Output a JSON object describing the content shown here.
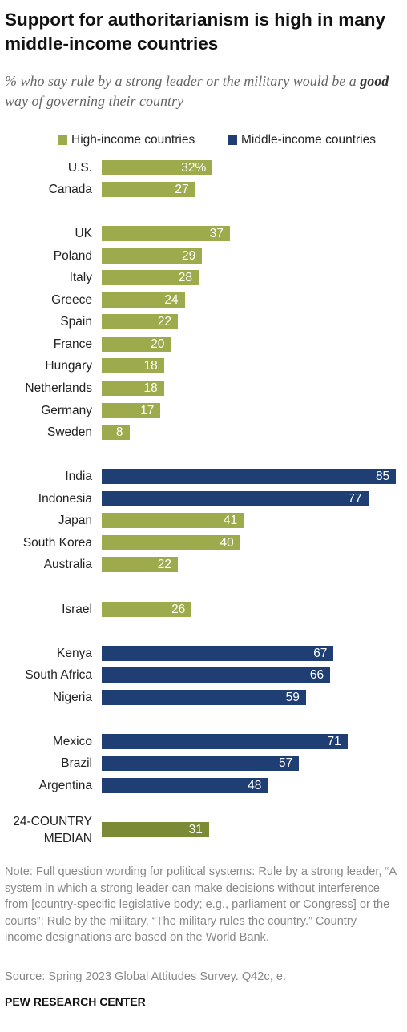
{
  "chart_data": {
    "type": "bar",
    "orientation": "horizontal",
    "title": "Support for authoritarianism is high in many middle-income countries",
    "subtitle": [
      "% who say rule by a strong leader or the military would be a ",
      "good",
      " way of governing their country"
    ],
    "legend": [
      {
        "name": "High-income countries",
        "color": "#9dab4c"
      },
      {
        "name": "Middle-income countries",
        "color": "#1f3e74"
      }
    ],
    "categories": [
      "U.S.",
      "Canada",
      "UK",
      "Poland",
      "Italy",
      "Greece",
      "Spain",
      "France",
      "Hungary",
      "Netherlands",
      "Germany",
      "Sweden",
      "India",
      "Indonesia",
      "Japan",
      "South Korea",
      "Australia",
      "Israel",
      "Kenya",
      "South Africa",
      "Nigeria",
      "Mexico",
      "Brazil",
      "Argentina",
      "24-COUNTRY MEDIAN"
    ],
    "values": [
      32,
      27,
      37,
      29,
      28,
      24,
      22,
      20,
      18,
      18,
      17,
      8,
      85,
      77,
      41,
      40,
      22,
      26,
      67,
      66,
      59,
      71,
      57,
      48,
      31
    ],
    "value_labels": [
      "32%",
      "27",
      "37",
      "29",
      "28",
      "24",
      "22",
      "20",
      "18",
      "18",
      "17",
      "8",
      "85",
      "77",
      "41",
      "40",
      "22",
      "26",
      "67",
      "66",
      "59",
      "71",
      "57",
      "48",
      "31"
    ],
    "colors": [
      "#9dab4c",
      "#9dab4c",
      "#9dab4c",
      "#9dab4c",
      "#9dab4c",
      "#9dab4c",
      "#9dab4c",
      "#9dab4c",
      "#9dab4c",
      "#9dab4c",
      "#9dab4c",
      "#9dab4c",
      "#1f3e74",
      "#1f3e74",
      "#9dab4c",
      "#9dab4c",
      "#9dab4c",
      "#9dab4c",
      "#1f3e74",
      "#1f3e74",
      "#1f3e74",
      "#1f3e74",
      "#1f3e74",
      "#1f3e74",
      "#7b8a34"
    ],
    "note": "Note: Full question wording for political systems: Rule by a strong leader, “A system in which a strong leader can make decisions without interference from [country-specific legislative body; e.g., parliament or Congress] or the courts”; Rule by the military, “The military rules the country.” Country income designations are based on the World Bank.",
    "source": "Source: Spring 2023 Global Attitudes Survey. Q42c, e.",
    "credit": "PEW RESEARCH CENTER"
  }
}
